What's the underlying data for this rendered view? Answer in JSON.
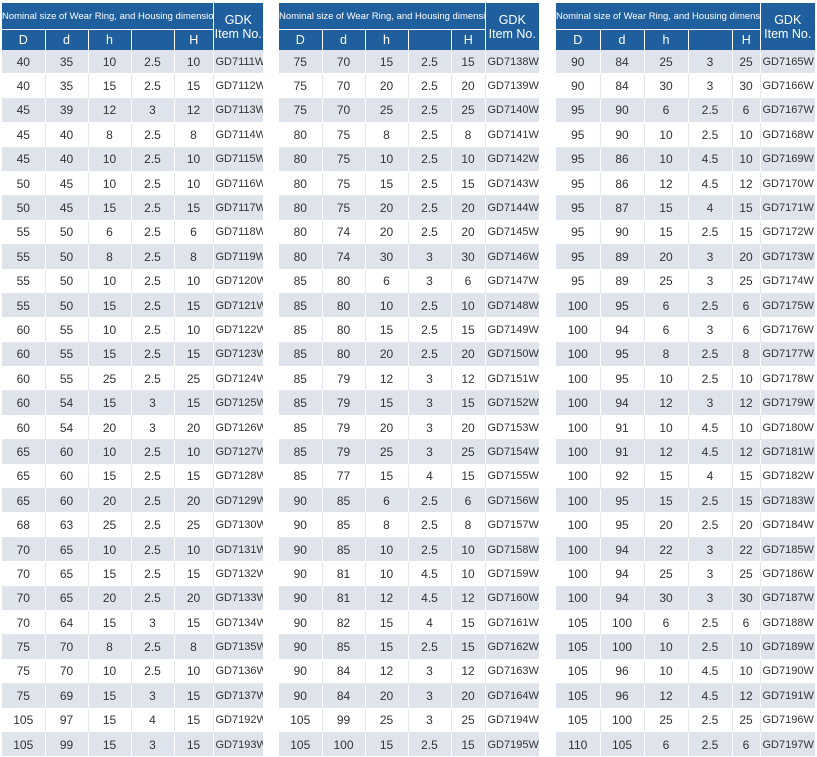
{
  "header": {
    "caption": "Nominal size of Wear Ring, and Housing dimensions",
    "gdk_line1": "GDK",
    "gdk_line2": "Item No.",
    "columns": [
      "D",
      "d",
      "h",
      "",
      "H"
    ]
  },
  "tables": [
    {
      "rows": [
        [
          "40",
          "35",
          "10",
          "2.5",
          "10",
          "GD7111W"
        ],
        [
          "40",
          "35",
          "15",
          "2.5",
          "15",
          "GD7112W"
        ],
        [
          "45",
          "39",
          "12",
          "3",
          "12",
          "GD7113W"
        ],
        [
          "45",
          "40",
          "8",
          "2.5",
          "8",
          "GD7114W"
        ],
        [
          "45",
          "40",
          "10",
          "2.5",
          "10",
          "GD7115W"
        ],
        [
          "50",
          "45",
          "10",
          "2.5",
          "10",
          "GD7116W"
        ],
        [
          "50",
          "45",
          "15",
          "2.5",
          "15",
          "GD7117W"
        ],
        [
          "55",
          "50",
          "6",
          "2.5",
          "6",
          "GD7118W"
        ],
        [
          "55",
          "50",
          "8",
          "2.5",
          "8",
          "GD7119W"
        ],
        [
          "55",
          "50",
          "10",
          "2.5",
          "10",
          "GD7120W"
        ],
        [
          "55",
          "50",
          "15",
          "2.5",
          "15",
          "GD7121W"
        ],
        [
          "60",
          "55",
          "10",
          "2.5",
          "10",
          "GD7122W"
        ],
        [
          "60",
          "55",
          "15",
          "2.5",
          "15",
          "GD7123W"
        ],
        [
          "60",
          "55",
          "25",
          "2.5",
          "25",
          "GD7124W"
        ],
        [
          "60",
          "54",
          "15",
          "3",
          "15",
          "GD7125W"
        ],
        [
          "60",
          "54",
          "20",
          "3",
          "20",
          "GD7126W"
        ],
        [
          "65",
          "60",
          "10",
          "2.5",
          "10",
          "GD7127W"
        ],
        [
          "65",
          "60",
          "15",
          "2.5",
          "15",
          "GD7128W"
        ],
        [
          "65",
          "60",
          "20",
          "2.5",
          "20",
          "GD7129W"
        ],
        [
          "68",
          "63",
          "25",
          "2.5",
          "25",
          "GD7130W"
        ],
        [
          "70",
          "65",
          "10",
          "2.5",
          "10",
          "GD7131W"
        ],
        [
          "70",
          "65",
          "15",
          "2.5",
          "15",
          "GD7132W"
        ],
        [
          "70",
          "65",
          "20",
          "2.5",
          "20",
          "GD7133W"
        ],
        [
          "70",
          "64",
          "15",
          "3",
          "15",
          "GD7134W"
        ],
        [
          "75",
          "70",
          "8",
          "2.5",
          "8",
          "GD7135W"
        ],
        [
          "75",
          "70",
          "10",
          "2.5",
          "10",
          "GD7136W"
        ],
        [
          "75",
          "69",
          "15",
          "3",
          "15",
          "GD7137W"
        ],
        [
          "105",
          "97",
          "15",
          "4",
          "15",
          "GD7192W"
        ],
        [
          "105",
          "99",
          "15",
          "3",
          "15",
          "GD7193W"
        ]
      ]
    },
    {
      "rows": [
        [
          "75",
          "70",
          "15",
          "2.5",
          "15",
          "GD7138W"
        ],
        [
          "75",
          "70",
          "20",
          "2.5",
          "20",
          "GD7139W"
        ],
        [
          "75",
          "70",
          "25",
          "2.5",
          "25",
          "GD7140W"
        ],
        [
          "80",
          "75",
          "8",
          "2.5",
          "8",
          "GD7141W"
        ],
        [
          "80",
          "75",
          "10",
          "2.5",
          "10",
          "GD7142W"
        ],
        [
          "80",
          "75",
          "15",
          "2.5",
          "15",
          "GD7143W"
        ],
        [
          "80",
          "75",
          "20",
          "2.5",
          "20",
          "GD7144W"
        ],
        [
          "80",
          "74",
          "20",
          "2.5",
          "20",
          "GD7145W"
        ],
        [
          "80",
          "74",
          "30",
          "3",
          "30",
          "GD7146W"
        ],
        [
          "85",
          "80",
          "6",
          "3",
          "6",
          "GD7147W"
        ],
        [
          "85",
          "80",
          "10",
          "2.5",
          "10",
          "GD7148W"
        ],
        [
          "85",
          "80",
          "15",
          "2.5",
          "15",
          "GD7149W"
        ],
        [
          "85",
          "80",
          "20",
          "2.5",
          "20",
          "GD7150W"
        ],
        [
          "85",
          "79",
          "12",
          "3",
          "12",
          "GD7151W"
        ],
        [
          "85",
          "79",
          "15",
          "3",
          "15",
          "GD7152W"
        ],
        [
          "85",
          "79",
          "20",
          "3",
          "20",
          "GD7153W"
        ],
        [
          "85",
          "79",
          "25",
          "3",
          "25",
          "GD7154W"
        ],
        [
          "85",
          "77",
          "15",
          "4",
          "15",
          "GD7155W"
        ],
        [
          "90",
          "85",
          "6",
          "2.5",
          "6",
          "GD7156W"
        ],
        [
          "90",
          "85",
          "8",
          "2.5",
          "8",
          "GD7157W"
        ],
        [
          "90",
          "85",
          "10",
          "2.5",
          "10",
          "GD7158W"
        ],
        [
          "90",
          "81",
          "10",
          "4.5",
          "10",
          "GD7159W"
        ],
        [
          "90",
          "81",
          "12",
          "4.5",
          "12",
          "GD7160W"
        ],
        [
          "90",
          "82",
          "15",
          "4",
          "15",
          "GD7161W"
        ],
        [
          "90",
          "85",
          "15",
          "2.5",
          "15",
          "GD7162W"
        ],
        [
          "90",
          "84",
          "12",
          "3",
          "12",
          "GD7163W"
        ],
        [
          "90",
          "84",
          "20",
          "3",
          "20",
          "GD7164W"
        ],
        [
          "105",
          "99",
          "25",
          "3",
          "25",
          "GD7194W"
        ],
        [
          "105",
          "100",
          "15",
          "2.5",
          "15",
          "GD7195W"
        ]
      ]
    },
    {
      "rows": [
        [
          "90",
          "84",
          "25",
          "3",
          "25",
          "GD7165W"
        ],
        [
          "90",
          "84",
          "30",
          "3",
          "30",
          "GD7166W"
        ],
        [
          "95",
          "90",
          "6",
          "2.5",
          "6",
          "GD7167W"
        ],
        [
          "95",
          "90",
          "10",
          "2.5",
          "10",
          "GD7168W"
        ],
        [
          "95",
          "86",
          "10",
          "4.5",
          "10",
          "GD7169W"
        ],
        [
          "95",
          "86",
          "12",
          "4.5",
          "12",
          "GD7170W"
        ],
        [
          "95",
          "87",
          "15",
          "4",
          "15",
          "GD7171W"
        ],
        [
          "95",
          "90",
          "15",
          "2.5",
          "15",
          "GD7172W"
        ],
        [
          "95",
          "89",
          "20",
          "3",
          "20",
          "GD7173W"
        ],
        [
          "95",
          "89",
          "25",
          "3",
          "25",
          "GD7174W"
        ],
        [
          "100",
          "95",
          "6",
          "2.5",
          "6",
          "GD7175W"
        ],
        [
          "100",
          "94",
          "6",
          "3",
          "6",
          "GD7176W"
        ],
        [
          "100",
          "95",
          "8",
          "2.5",
          "8",
          "GD7177W"
        ],
        [
          "100",
          "95",
          "10",
          "2.5",
          "10",
          "GD7178W"
        ],
        [
          "100",
          "94",
          "12",
          "3",
          "12",
          "GD7179W"
        ],
        [
          "100",
          "91",
          "10",
          "4.5",
          "10",
          "GD7180W"
        ],
        [
          "100",
          "91",
          "12",
          "4.5",
          "12",
          "GD7181W"
        ],
        [
          "100",
          "92",
          "15",
          "4",
          "15",
          "GD7182W"
        ],
        [
          "100",
          "95",
          "15",
          "2.5",
          "15",
          "GD7183W"
        ],
        [
          "100",
          "95",
          "20",
          "2.5",
          "20",
          "GD7184W"
        ],
        [
          "100",
          "94",
          "22",
          "3",
          "22",
          "GD7185W"
        ],
        [
          "100",
          "94",
          "25",
          "3",
          "25",
          "GD7186W"
        ],
        [
          "100",
          "94",
          "30",
          "3",
          "30",
          "GD7187W"
        ],
        [
          "105",
          "100",
          "6",
          "2.5",
          "6",
          "GD7188W"
        ],
        [
          "105",
          "100",
          "10",
          "2.5",
          "10",
          "GD7189W"
        ],
        [
          "105",
          "96",
          "10",
          "4.5",
          "10",
          "GD7190W"
        ],
        [
          "105",
          "96",
          "12",
          "4.5",
          "12",
          "GD7191W"
        ],
        [
          "105",
          "100",
          "25",
          "2.5",
          "25",
          "GD7196W"
        ],
        [
          "110",
          "105",
          "6",
          "2.5",
          "6",
          "GD7197W"
        ]
      ]
    }
  ]
}
